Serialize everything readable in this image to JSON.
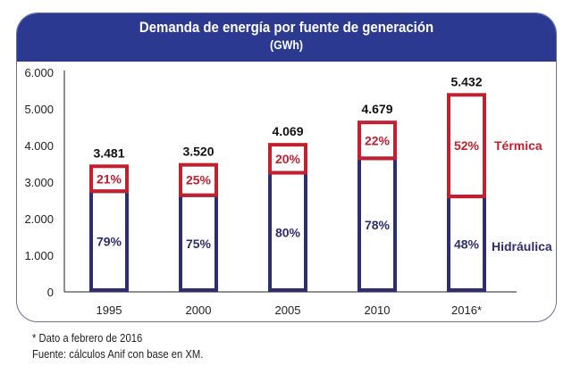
{
  "chart_data": {
    "type": "bar",
    "stacked": true,
    "title": "Demanda de energía por fuente de generación",
    "subtitle": "(GWh)",
    "categories": [
      "1995",
      "2000",
      "2005",
      "2010",
      "2016*"
    ],
    "totals": [
      3481,
      3520,
      4069,
      4679,
      5432
    ],
    "total_labels": [
      "3.481",
      "3.520",
      "4.069",
      "4.679",
      "5.432"
    ],
    "series": [
      {
        "name": "Hidráulica",
        "share_pct": [
          79,
          75,
          80,
          78,
          48
        ],
        "color": "#2e2d6e"
      },
      {
        "name": "Térmica",
        "share_pct": [
          21,
          25,
          20,
          22,
          52
        ],
        "color": "#c1202f"
      }
    ],
    "ylim": [
      0,
      6000
    ],
    "yticks": [
      0,
      1000,
      2000,
      3000,
      4000,
      5000,
      6000
    ],
    "ytick_labels": [
      "0",
      "1.000",
      "2.000",
      "3.000",
      "4.000",
      "5.000",
      "6.000"
    ],
    "grid": false,
    "legend_placement": "right, inline labels"
  },
  "footnotes": {
    "note": "* Dato a febrero de 2016",
    "source": "Fuente: cálculos Anif con base en XM."
  },
  "colors": {
    "header": "#2b3990"
  }
}
